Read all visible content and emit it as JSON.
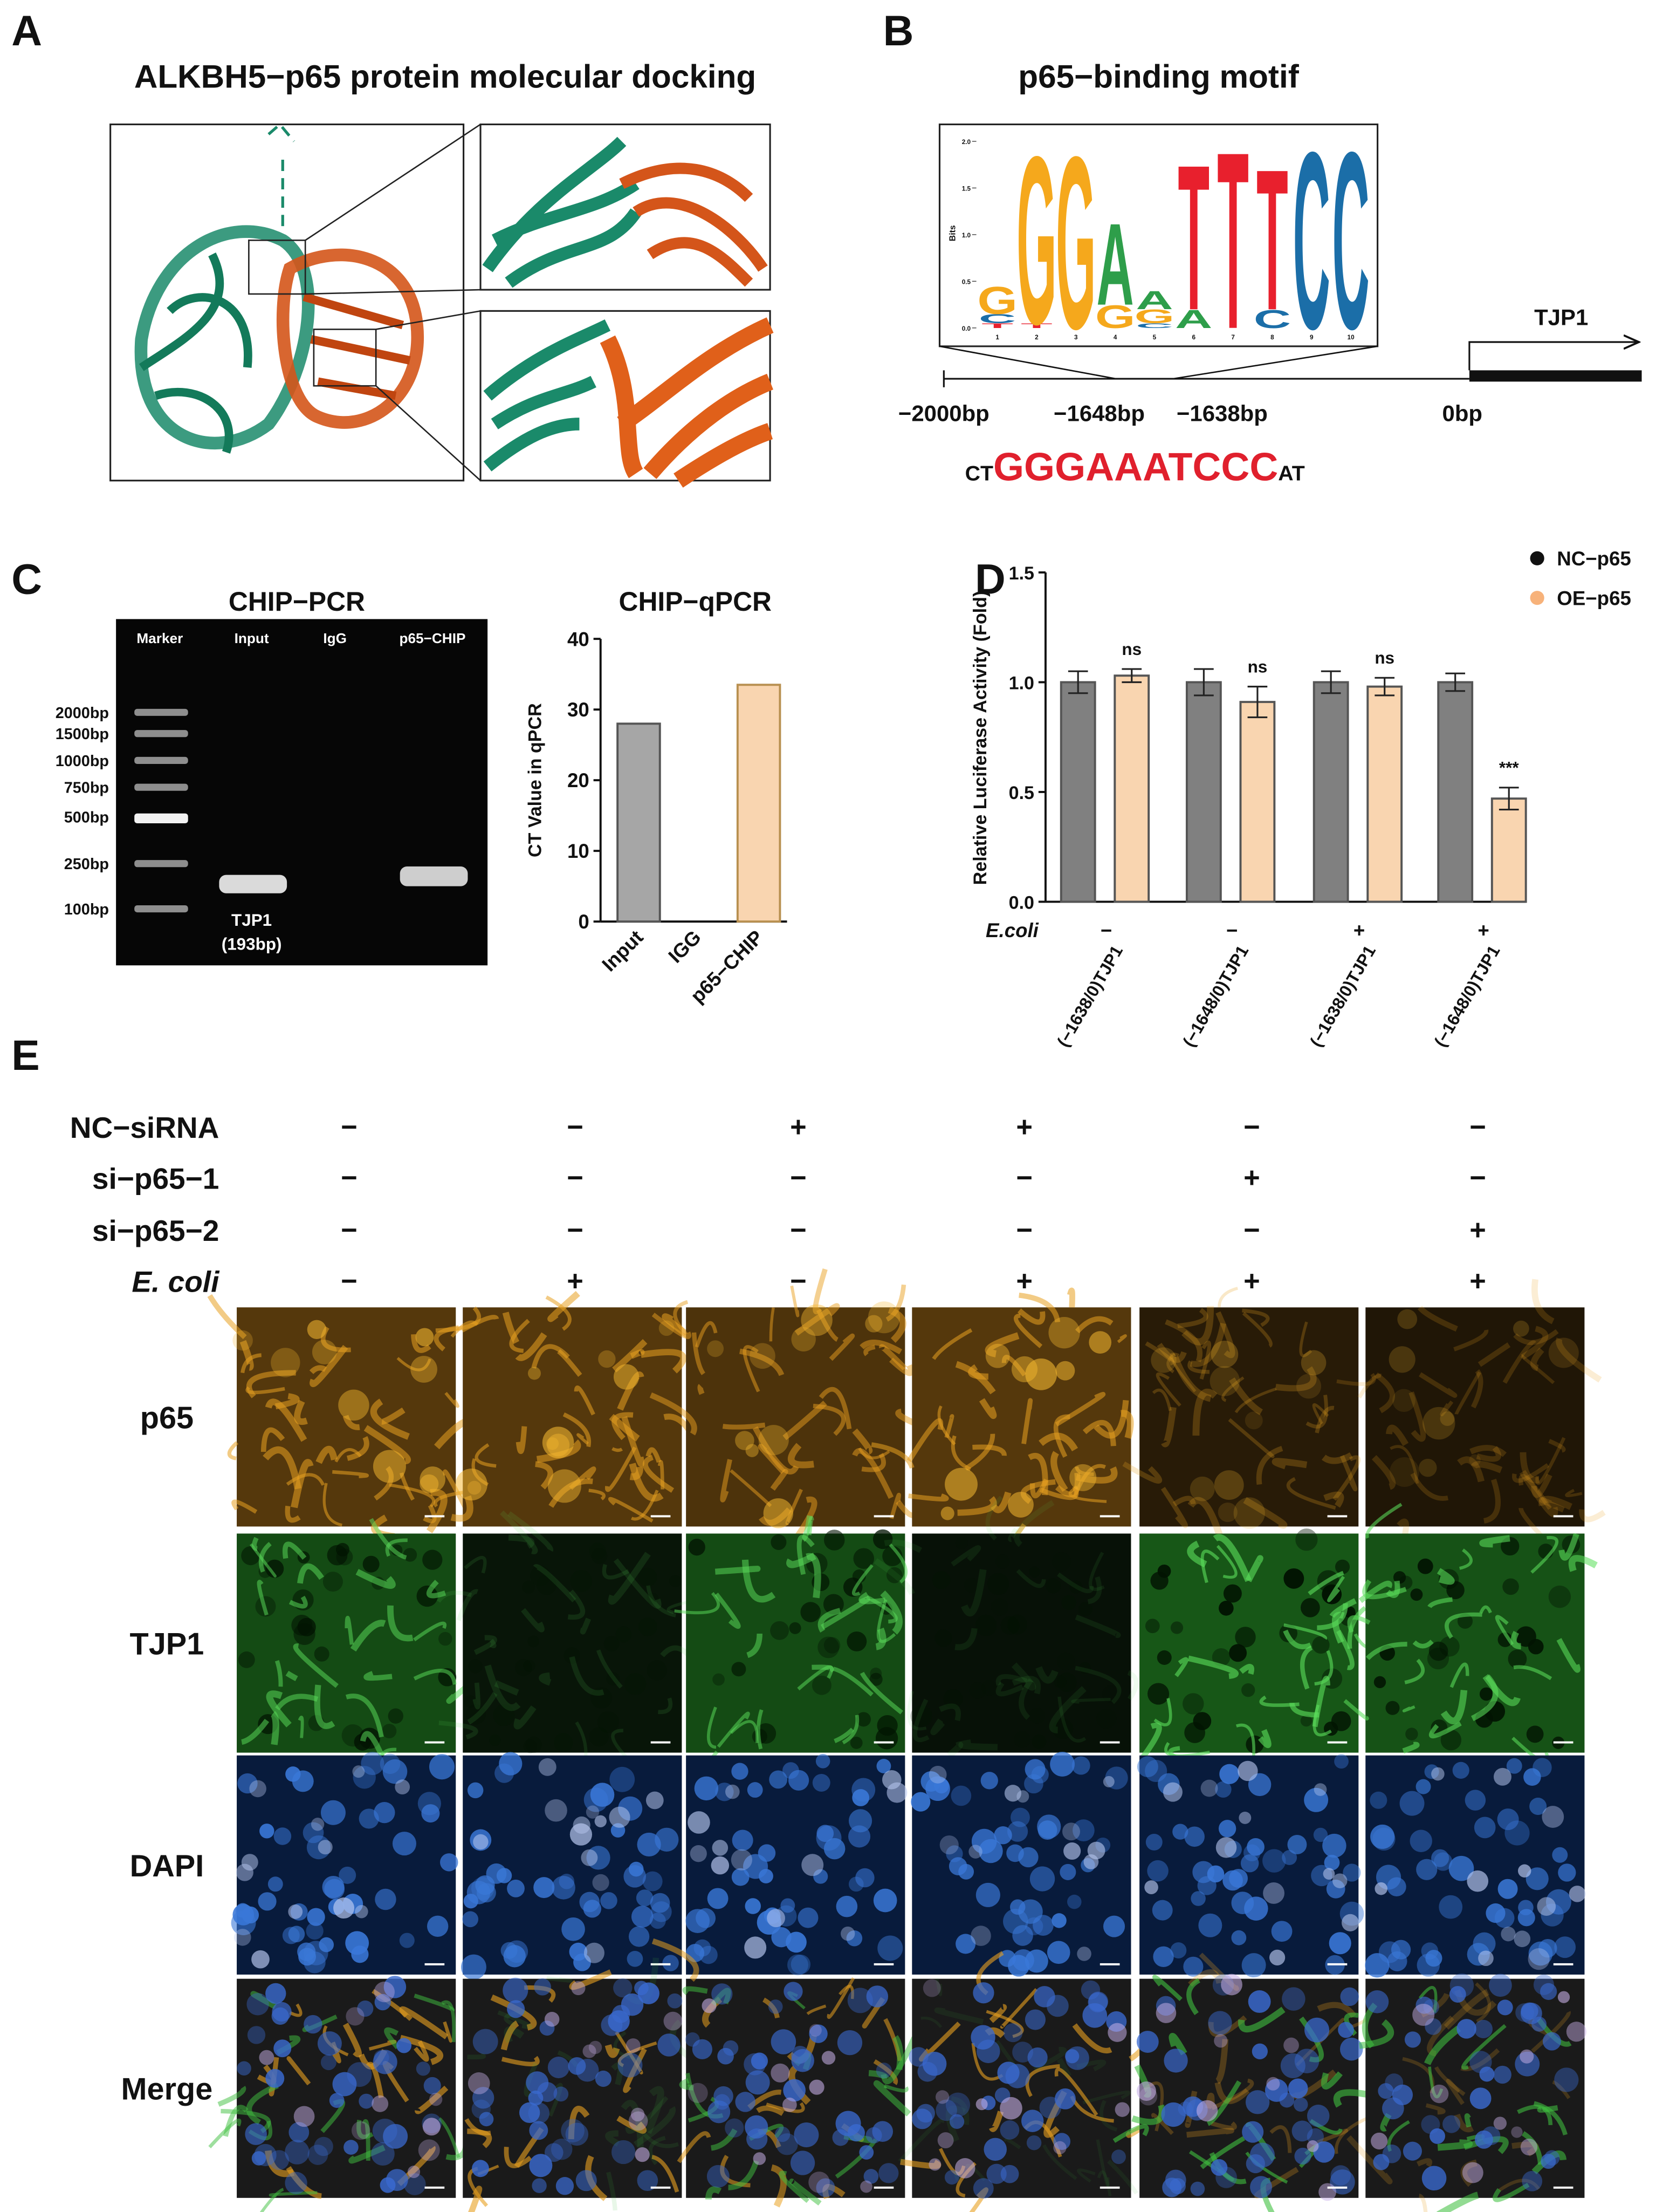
{
  "panel_a": {
    "letter": "A",
    "title": "ALKBH5−p65 protein molecular docking"
  },
  "panel_b": {
    "letter": "B",
    "title": "p65−binding motif",
    "motif": {
      "y_label": "Bits",
      "yticks": [
        {
          "value": 0,
          "label": "0.0"
        },
        0.5,
        {
          "value": 1,
          "label": "1.0"
        },
        1.5,
        {
          "value": 2,
          "label": "2.0"
        }
      ],
      "ylim": [
        0,
        2
      ],
      "positions": [
        1,
        2,
        3,
        4,
        5,
        6,
        7,
        8,
        9,
        10
      ],
      "columns": [
        [
          {
            "letter": "T",
            "bits": 0.05
          },
          {
            "letter": "C",
            "bits": 0.1
          },
          {
            "letter": "G",
            "bits": 0.3
          }
        ],
        [
          {
            "letter": "T",
            "bits": 0.05
          },
          {
            "letter": "G",
            "bits": 1.85
          }
        ],
        [
          {
            "letter": "G",
            "bits": 1.9
          }
        ],
        [
          {
            "letter": "G",
            "bits": 0.25
          },
          {
            "letter": "A",
            "bits": 0.9
          }
        ],
        [
          {
            "letter": "C",
            "bits": 0.05
          },
          {
            "letter": "G",
            "bits": 0.15
          },
          {
            "letter": "A",
            "bits": 0.2
          }
        ],
        [
          {
            "letter": "A",
            "bits": 0.2
          },
          {
            "letter": "T",
            "bits": 1.6
          }
        ],
        [
          {
            "letter": "T",
            "bits": 1.95
          }
        ],
        [
          {
            "letter": "C",
            "bits": 0.2
          },
          {
            "letter": "T",
            "bits": 1.55
          }
        ],
        [
          {
            "letter": "C",
            "bits": 1.95
          }
        ],
        [
          {
            "letter": "C",
            "bits": 1.95
          }
        ]
      ]
    },
    "promoter": {
      "gene": "TJP1",
      "ticks": [
        "−2000bp",
        "−1648bp",
        "−1638bp",
        "0bp"
      ]
    },
    "sequence": {
      "prefix": "CT",
      "core": "GGGAAATCCC",
      "suffix": "AT"
    }
  },
  "panel_c": {
    "letter": "C",
    "gel": {
      "title": "CHIP−PCR",
      "lanes": [
        "Marker",
        "Input",
        "IgG",
        "p65−CHIP"
      ],
      "ladder": [
        "2000bp",
        "1500bp",
        "1000bp",
        "750bp",
        "500bp",
        "250bp",
        "100bp"
      ],
      "band_label": "TJP1",
      "band_size": "(193bp)"
    },
    "qpcr": {
      "type": "bar",
      "title": "CHIP−qPCR",
      "y_label": "CT Value in qPCR",
      "categories": [
        "Input",
        "IGG",
        "p65−CHIP"
      ],
      "values": [
        28,
        null,
        33.5
      ],
      "colors": [
        "#a6a6a6",
        "#a6a6a6",
        "#f9d5b0"
      ],
      "ylim": [
        0,
        40
      ],
      "yticks": [
        0,
        10,
        20,
        30,
        40
      ]
    }
  },
  "panel_d": {
    "letter": "D",
    "type": "bar",
    "y_label": "Relative Luciferase Activity (Fold)",
    "categories": [
      "(−1638/0)TJP1",
      "(−1648/0)TJP1",
      "(−1638/0)TJP1",
      "(−1648/0)TJP1"
    ],
    "series": [
      {
        "name": "NC−p65",
        "color": "#808080",
        "legend_color": "#111111",
        "values": [
          1.0,
          1.0,
          1.0,
          1.0
        ],
        "errors": [
          0.05,
          0.06,
          0.05,
          0.04
        ]
      },
      {
        "name": "OE−p65",
        "color": "#f9d5b0",
        "legend_color": "#f7b27a",
        "values": [
          1.03,
          0.91,
          0.98,
          0.47
        ],
        "errors": [
          0.03,
          0.07,
          0.04,
          0.05
        ]
      }
    ],
    "annotations": [
      "ns",
      "ns",
      "ns",
      "***"
    ],
    "ylim": [
      0,
      1.5
    ],
    "yticks": [
      {
        "value": 0,
        "label": "0.0"
      },
      0.5,
      {
        "value": 1,
        "label": "1.0"
      },
      1.5
    ],
    "row_label": "E.coli",
    "row_values": [
      "−",
      "−",
      "+",
      "+"
    ]
  },
  "panel_e": {
    "letter": "E",
    "conditions": [
      {
        "name": "NC−siRNA",
        "signs": [
          "−",
          "−",
          "+",
          "+",
          "−",
          "−"
        ]
      },
      {
        "name": "si−p65−1",
        "signs": [
          "−",
          "−",
          "−",
          "−",
          "+",
          "−"
        ]
      },
      {
        "name": "si−p65−2",
        "signs": [
          "−",
          "−",
          "−",
          "−",
          "−",
          "+"
        ]
      },
      {
        "name": "E. coli",
        "signs": [
          "−",
          "+",
          "−",
          "+",
          "+",
          "+"
        ]
      }
    ],
    "stains": [
      "p65",
      "TJP1",
      "DAPI",
      "Merge"
    ]
  }
}
